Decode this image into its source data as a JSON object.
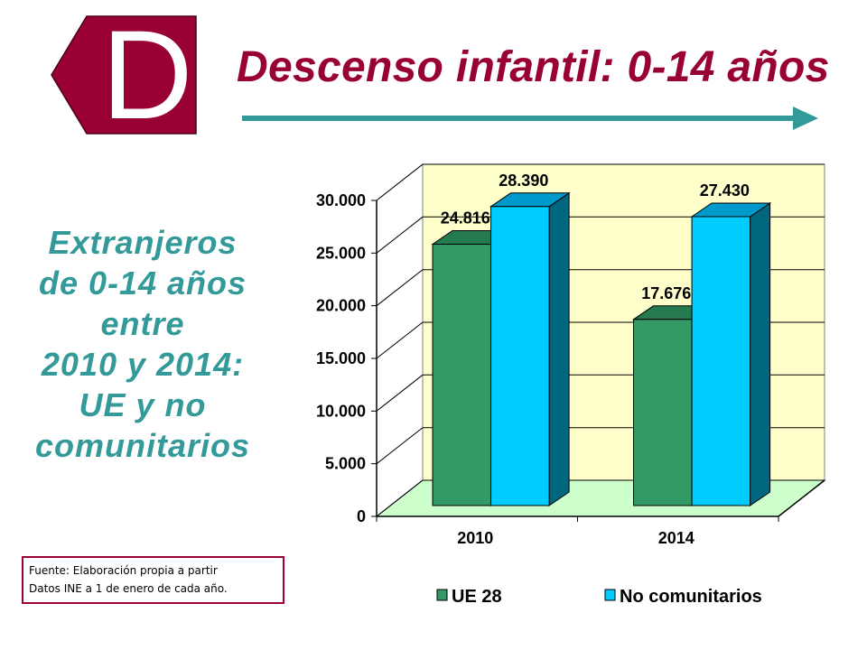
{
  "logo": {
    "letter": "D"
  },
  "title": "Descenso infantil: 0-14 años",
  "side_text": {
    "lines": [
      "Extranjeros",
      "de 0-14 años",
      "entre",
      "2010 y 2014:",
      "UE y no",
      "comunitarios"
    ]
  },
  "source_note": {
    "lines": [
      "Fuente: Elaboración propia a partir",
      "Datos INE a 1 de enero de cada año."
    ]
  },
  "colors": {
    "brand": "#990033",
    "teal": "#339999"
  },
  "chart_data": {
    "type": "bar",
    "is_3d": true,
    "categories": [
      "2010",
      "2014"
    ],
    "series": [
      {
        "name": "UE 28",
        "values": [
          24816,
          17676
        ],
        "data_labels": [
          "24.816",
          "17.676"
        ],
        "color": "#339966",
        "top_color": "#267A50",
        "side_color": "#1F5C3D"
      },
      {
        "name": "No comunitarios",
        "values": [
          28390,
          27430
        ],
        "data_labels": [
          "28.390",
          "27.430"
        ],
        "color": "#00CCFF",
        "top_color": "#0099CC",
        "side_color": "#006680"
      }
    ],
    "ylim": [
      0,
      30000
    ],
    "yticks": [
      0,
      5000,
      10000,
      15000,
      20000,
      25000,
      30000
    ],
    "ytick_labels": [
      "0",
      "5.000",
      "10.000",
      "15.000",
      "20.000",
      "25.000",
      "30.000"
    ],
    "grid": true,
    "legend": "bottom",
    "wall_color": "#FFFFCC",
    "floor_color": "#CCFFCC"
  }
}
